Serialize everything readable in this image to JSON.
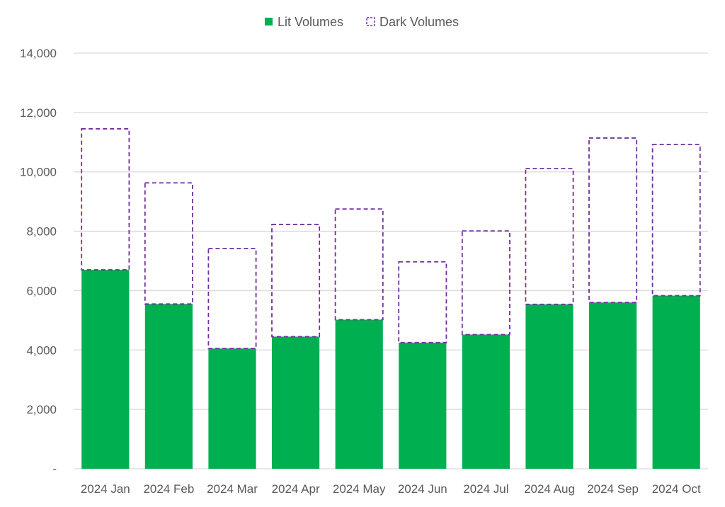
{
  "chart_data": {
    "type": "bar",
    "stacked": true,
    "categories": [
      "2024 Jan",
      "2024 Feb",
      "2024 Mar",
      "2024 Apr",
      "2024 May",
      "2024 Jun",
      "2024 Jul",
      "2024 Aug",
      "2024 Sep",
      "2024 Oct"
    ],
    "series": [
      {
        "name": "Lit Volumes",
        "color": "#00B050",
        "style": "solid",
        "values": [
          6700,
          5550,
          4050,
          4450,
          5020,
          4250,
          4520,
          5540,
          5600,
          5830
        ]
      },
      {
        "name": "Dark Volumes",
        "color": "#7030A0",
        "style": "dashed-outline",
        "values": [
          4750,
          4080,
          3370,
          3780,
          3730,
          2720,
          3490,
          4570,
          5540,
          5090
        ]
      }
    ],
    "ylim": [
      0,
      14000
    ],
    "y_ticks": [
      {
        "value": 0,
        "label": "-"
      },
      {
        "value": 2000,
        "label": "2,000"
      },
      {
        "value": 4000,
        "label": "4,000"
      },
      {
        "value": 6000,
        "label": "6,000"
      },
      {
        "value": 8000,
        "label": "8,000"
      },
      {
        "value": 10000,
        "label": "10,000"
      },
      {
        "value": 12000,
        "label": "12,000"
      },
      {
        "value": 14000,
        "label": "14,000"
      }
    ],
    "grid": true,
    "legend_position": "top-center",
    "title": "",
    "xlabel": "",
    "ylabel": ""
  }
}
